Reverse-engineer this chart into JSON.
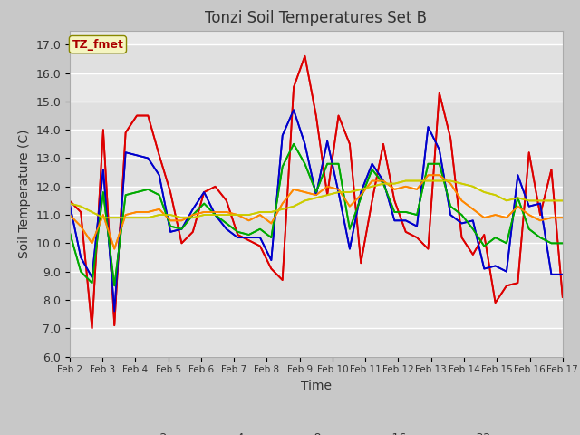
{
  "title": "Tonzi Soil Temperatures Set B",
  "xlabel": "Time",
  "ylabel": "Soil Temperature (C)",
  "ylim": [
    6.0,
    17.5
  ],
  "yticks": [
    6.0,
    7.0,
    8.0,
    9.0,
    10.0,
    11.0,
    12.0,
    13.0,
    14.0,
    15.0,
    16.0,
    17.0
  ],
  "annotation": "TZ_fmet",
  "fig_bg": "#c8c8c8",
  "plot_bg": "#e8e8e8",
  "grid_color": "#ffffff",
  "line_colors": {
    "-2cm": "#dd0000",
    "-4cm": "#0000cc",
    "-8cm": "#00aa00",
    "-16cm": "#ff8800",
    "-32cm": "#cccc00"
  },
  "data": {
    "-2cm": [
      11.5,
      11.1,
      7.0,
      14.0,
      7.1,
      13.9,
      14.5,
      14.5,
      13.1,
      11.8,
      10.0,
      10.4,
      11.8,
      12.0,
      11.5,
      10.3,
      10.1,
      9.9,
      9.1,
      8.7,
      15.5,
      16.6,
      14.5,
      11.7,
      14.5,
      13.5,
      9.3,
      11.5,
      13.5,
      11.5,
      10.4,
      10.2,
      9.8,
      15.3,
      13.7,
      10.2,
      9.6,
      10.3,
      7.9,
      8.5,
      8.6,
      13.2,
      11.0,
      12.6,
      8.1
    ],
    "-4cm": [
      11.4,
      9.5,
      8.8,
      12.6,
      7.6,
      13.2,
      13.1,
      13.0,
      12.4,
      10.4,
      10.5,
      11.2,
      11.8,
      11.0,
      10.5,
      10.2,
      10.2,
      10.2,
      9.4,
      13.8,
      14.7,
      13.5,
      11.7,
      13.6,
      11.8,
      9.8,
      11.8,
      12.8,
      12.2,
      10.8,
      10.8,
      10.6,
      14.1,
      13.3,
      11.0,
      10.7,
      10.8,
      9.1,
      9.2,
      9.0,
      12.4,
      11.3,
      11.4,
      8.9,
      8.9
    ],
    "-8cm": [
      10.4,
      9.0,
      8.6,
      11.8,
      8.5,
      11.7,
      11.8,
      11.9,
      11.7,
      10.6,
      10.5,
      11.0,
      11.4,
      11.0,
      10.7,
      10.4,
      10.3,
      10.5,
      10.2,
      12.7,
      13.5,
      12.8,
      11.8,
      12.8,
      12.8,
      10.5,
      11.6,
      12.6,
      12.1,
      11.1,
      11.1,
      11.0,
      12.8,
      12.8,
      11.3,
      11.0,
      10.5,
      9.9,
      10.2,
      10.0,
      11.6,
      10.5,
      10.2,
      10.0,
      10.0
    ],
    "-16cm": [
      11.0,
      10.6,
      10.0,
      11.0,
      9.8,
      11.0,
      11.1,
      11.1,
      11.2,
      10.8,
      10.8,
      11.0,
      11.1,
      11.1,
      11.1,
      11.0,
      10.8,
      11.0,
      10.7,
      11.4,
      11.9,
      11.8,
      11.7,
      12.0,
      11.9,
      11.3,
      11.7,
      12.2,
      12.2,
      11.9,
      12.0,
      11.9,
      12.4,
      12.4,
      12.1,
      11.5,
      11.2,
      10.9,
      11.0,
      10.9,
      11.3,
      11.0,
      10.8,
      10.9,
      10.9
    ],
    "-32cm": [
      11.4,
      11.3,
      11.1,
      10.9,
      10.9,
      10.9,
      10.9,
      10.9,
      11.0,
      11.0,
      10.9,
      10.9,
      11.0,
      11.0,
      11.0,
      11.0,
      11.0,
      11.1,
      11.1,
      11.2,
      11.3,
      11.5,
      11.6,
      11.7,
      11.8,
      11.8,
      11.9,
      12.0,
      12.1,
      12.1,
      12.2,
      12.2,
      12.2,
      12.2,
      12.2,
      12.1,
      12.0,
      11.8,
      11.7,
      11.5,
      11.6,
      11.5,
      11.5,
      11.5,
      11.5
    ]
  }
}
